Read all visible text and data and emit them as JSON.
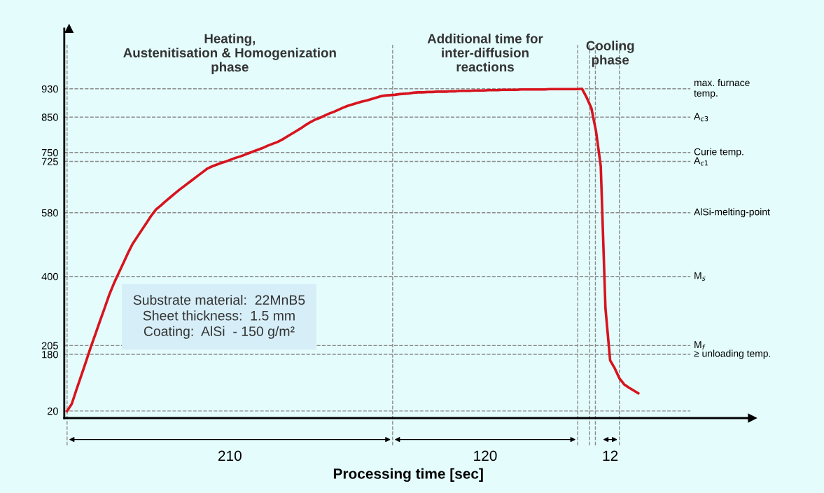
{
  "chart_data": {
    "type": "line",
    "xlabel": "Processing time [sec]",
    "categories": [
      null,
      null,
      null,
      null,
      null,
      null,
      null,
      null,
      null,
      null,
      null,
      null,
      null,
      null,
      null,
      null,
      null,
      null,
      null,
      null,
      null,
      null,
      null,
      null,
      null,
      null,
      null,
      null,
      null,
      null,
      null,
      null,
      null,
      null,
      null,
      null,
      null,
      null,
      null,
      null,
      null,
      null,
      null,
      null,
      null,
      null,
      null,
      null,
      null,
      null,
      null,
      null,
      null,
      null,
      null,
      null,
      null,
      null,
      null,
      null,
      null,
      null,
      null,
      null,
      null,
      null,
      null,
      null,
      null,
      null,
      null,
      null,
      null,
      null,
      null,
      null,
      null,
      null,
      null,
      null,
      null,
      null,
      null,
      null,
      null,
      null,
      null,
      null,
      null,
      null,
      null,
      null,
      null,
      null,
      null,
      null,
      null,
      null,
      null,
      null,
      null,
      null,
      null,
      null,
      null,
      null,
      null,
      null,
      null,
      null,
      null,
      null,
      null,
      null,
      null,
      null,
      null,
      null,
      null,
      null,
      null,
      null,
      null
    ],
    "series": [
      {
        "color": "#d7141e",
        "values": [
          20,
          40,
          80,
          119,
          158,
          198,
          235,
          273,
          310,
          348,
          380,
          409,
          437,
          466,
          492,
          512,
          532,
          552,
          572,
          589,
          600,
          612,
          623,
          634,
          645,
          655,
          665,
          675,
          685,
          695,
          705,
          711,
          716,
          721,
          725,
          730,
          735,
          739,
          744,
          749,
          754,
          759,
          764,
          770,
          775,
          780,
          787,
          795,
          803,
          811,
          819,
          828,
          836,
          843,
          848,
          854,
          860,
          865,
          871,
          877,
          882,
          886,
          890,
          894,
          897,
          901,
          905,
          909,
          911,
          912,
          913,
          915,
          916,
          917,
          919,
          920,
          920,
          921,
          921,
          922,
          922,
          922,
          923,
          923,
          924,
          924,
          924,
          925,
          925,
          925,
          926,
          926,
          926,
          927,
          927,
          927,
          927,
          928,
          928,
          928,
          928,
          928,
          928,
          929,
          929,
          929,
          929,
          929,
          929,
          929,
          930,
          905,
          875,
          809,
          711,
          310,
          163,
          140,
          112,
          95,
          86,
          78,
          70
        ]
      }
    ],
    "ylim": [
      0,
      1100
    ],
    "yticks": [
      20,
      180,
      205,
      400,
      580,
      725,
      750,
      850,
      930
    ],
    "ref_lines": [
      {
        "axis": "y",
        "value": 930,
        "label": "max. furnace\ntemp."
      },
      {
        "axis": "y",
        "value": 850,
        "label": "A$_{c3}$"
      },
      {
        "axis": "y",
        "value": 750,
        "label": "Curie temp."
      },
      {
        "axis": "y",
        "value": 725,
        "label": "A$_{c1}$"
      },
      {
        "axis": "y",
        "value": 580,
        "label": "AlSi-melting-point"
      },
      {
        "axis": "y",
        "value": 400,
        "label": "M$_{s}$"
      },
      {
        "axis": "y",
        "value": 205,
        "label": "M$_{f}$"
      },
      {
        "axis": "y",
        "value": 180,
        "label": "≥ unloading temp."
      },
      {
        "axis": "y",
        "value": 20,
        "label": null
      }
    ],
    "annotations": [
      "Heating,\nAustenitisation & Homogenization\nphase",
      "Additional time for\ninter-diffusion\nreactions",
      "Cooling\nphase",
      "210",
      "120",
      "12",
      "Substrate material:  22MnB5\nSheet thickness:  1.5 mm\nCoating:  AlSi  - 150 g/m²"
    ]
  }
}
